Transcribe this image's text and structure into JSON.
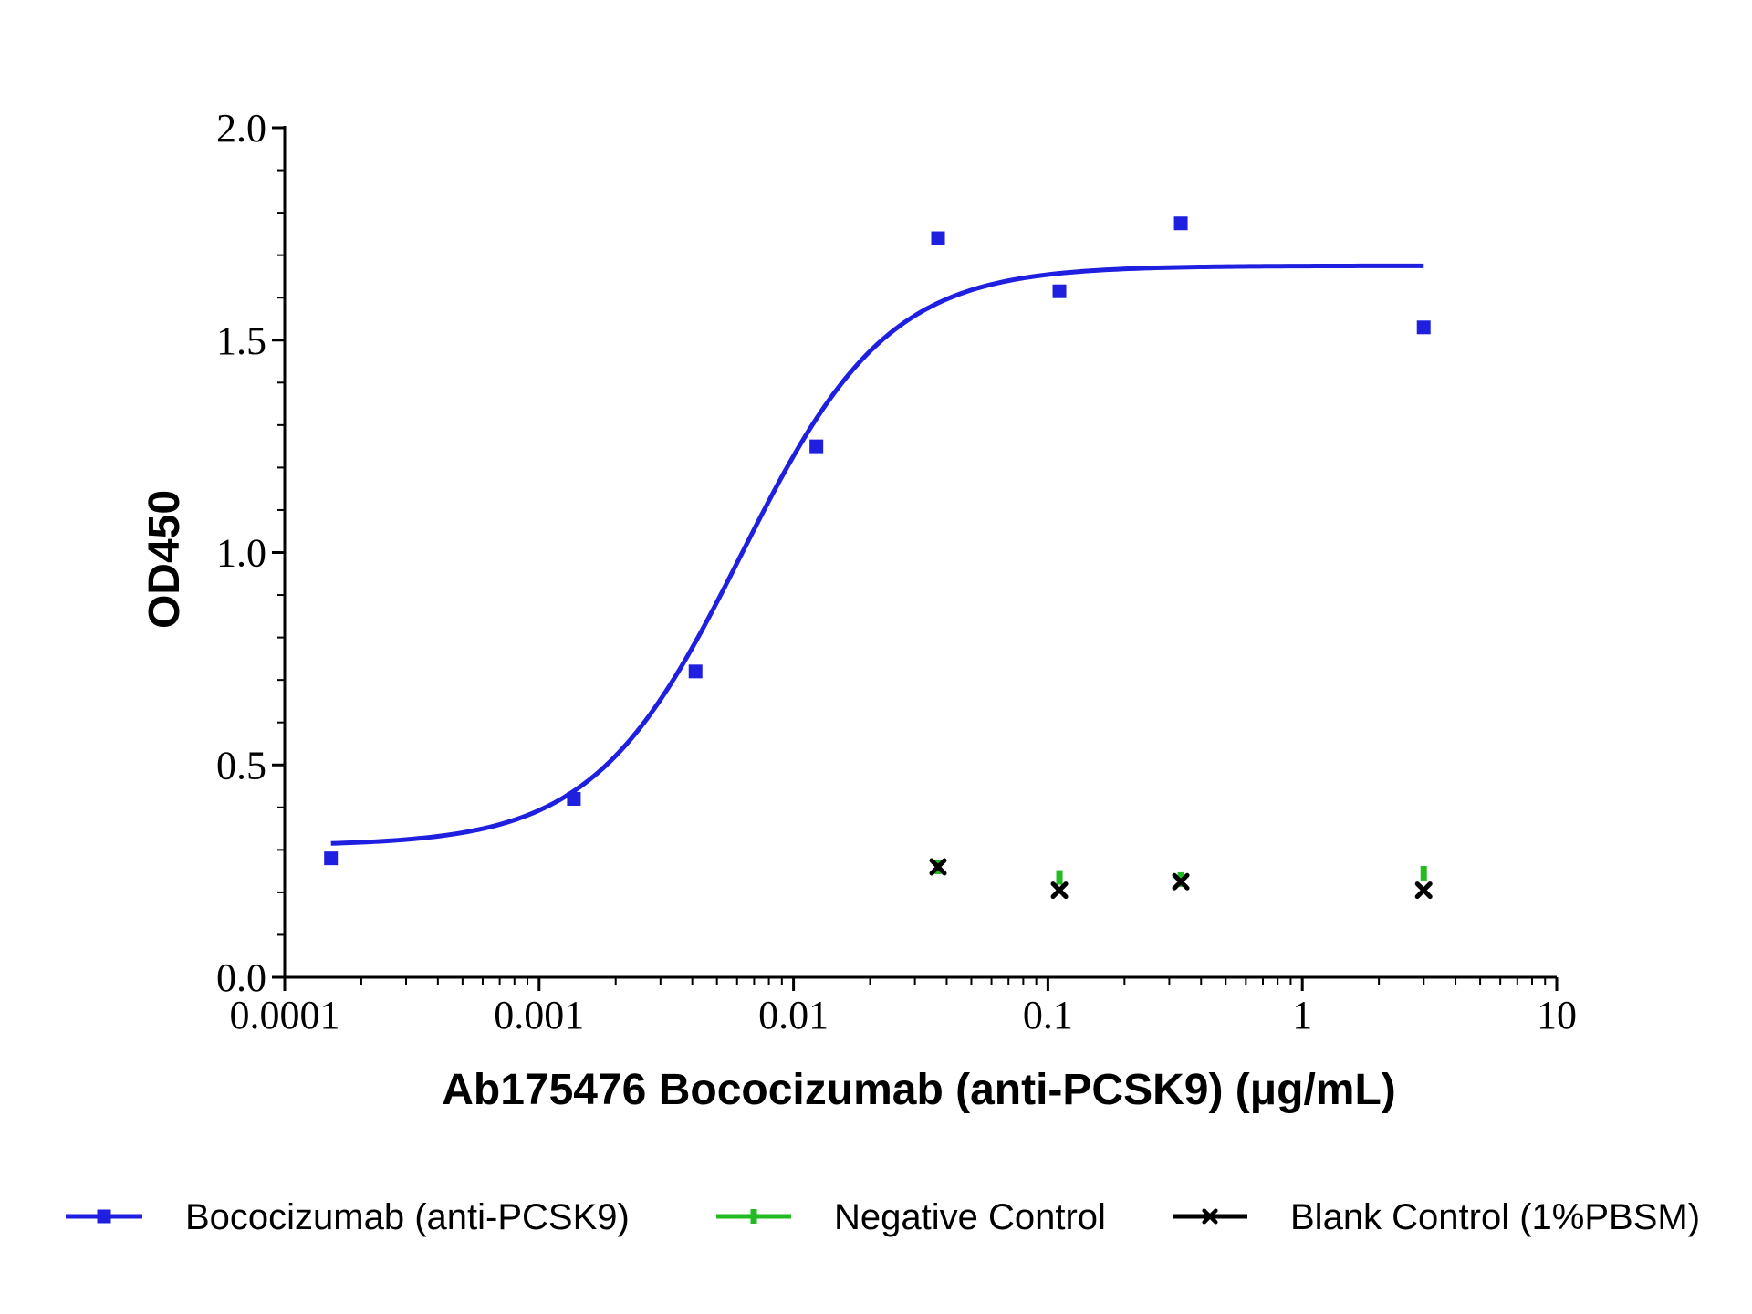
{
  "chart_data": {
    "type": "scatter",
    "xlabel": "Ab175476 Bococizumab (anti-PCSK9) (μg/mL)",
    "ylabel": "OD450",
    "x_scale": "log",
    "xlim": [
      0.0001,
      10
    ],
    "ylim": [
      0,
      2.0
    ],
    "x_ticks": [
      {
        "value": 0.0001,
        "label": "0.0001"
      },
      {
        "value": 0.001,
        "label": "0.001"
      },
      {
        "value": 0.01,
        "label": "0.01"
      },
      {
        "value": 0.1,
        "label": "0.1"
      },
      {
        "value": 1,
        "label": "1"
      },
      {
        "value": 10,
        "label": "10"
      }
    ],
    "y_ticks": [
      {
        "value": 0.0,
        "label": "0.0"
      },
      {
        "value": 0.5,
        "label": "0.5"
      },
      {
        "value": 1.0,
        "label": "1.0"
      },
      {
        "value": 1.5,
        "label": "1.5"
      },
      {
        "value": 2.0,
        "label": "2.0"
      }
    ],
    "grid": false,
    "legend_position": "bottom",
    "series": [
      {
        "name": "Bococizumab (anti-PCSK9)",
        "color": "#1f1fe0",
        "marker": "square",
        "fit": "sigmoid",
        "fit_params": {
          "bottom": 0.31,
          "top": 1.675,
          "ec50": 0.0062,
          "hill": 1.5
        },
        "x": [
          0.000152,
          0.00137,
          0.00412,
          0.0123,
          0.037,
          0.111,
          0.333,
          3.0
        ],
        "y": [
          0.28,
          0.42,
          0.72,
          1.25,
          1.74,
          1.615,
          1.775,
          1.53
        ]
      },
      {
        "name": "Negative Control",
        "color": "#22bb22",
        "marker": "dash",
        "x": [
          0.037,
          0.111,
          0.333,
          3.0
        ],
        "y": [
          0.26,
          0.235,
          0.23,
          0.245
        ]
      },
      {
        "name": "Blank Control (1%PBSM)",
        "color": "#000000",
        "marker": "x",
        "x": [
          0.037,
          0.111,
          0.333,
          3.0
        ],
        "y": [
          0.26,
          0.205,
          0.225,
          0.205
        ]
      }
    ]
  }
}
